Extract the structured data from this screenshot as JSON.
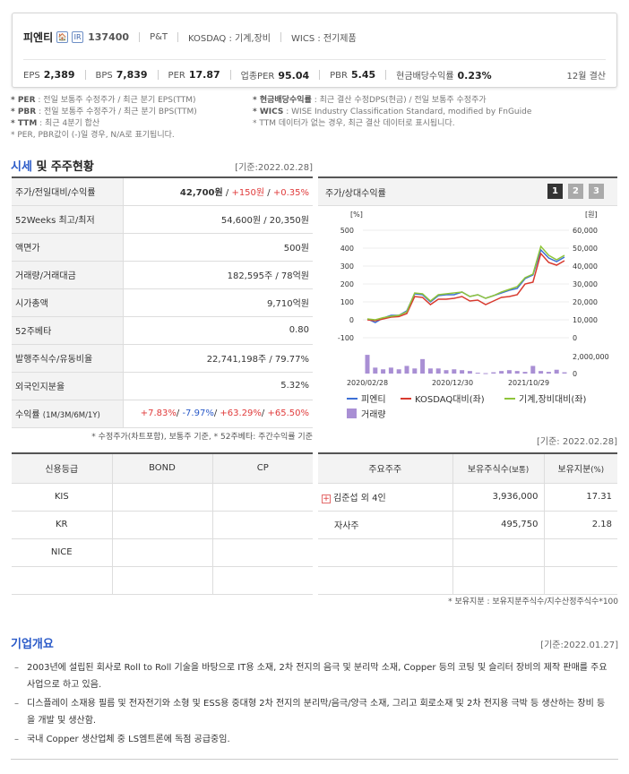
{
  "header": {
    "company": "피엔티",
    "icon1": "🏠",
    "icon2": "IR",
    "code": "137400",
    "tag": "P&T",
    "market": "KOSDAQ : 기계,장비",
    "wics": "WICS : 전기제품",
    "metrics": [
      {
        "label": "EPS",
        "value": "2,389"
      },
      {
        "label": "BPS",
        "value": "7,839"
      },
      {
        "label": "PER",
        "value": "17.87"
      },
      {
        "label": "업종PER",
        "value": "95.04"
      },
      {
        "label": "PBR",
        "value": "5.45"
      },
      {
        "label": "현금배당수익률",
        "value": "0.23%"
      }
    ],
    "settlement": "12월 결산"
  },
  "notes_left": [
    {
      "key": "* PER",
      "text": ": 전일 보통주 수정주가 / 최근 분기 EPS(TTM)"
    },
    {
      "key": "* PBR",
      "text": ": 전일 보통주 수정주가 / 최근 분기 BPS(TTM)"
    },
    {
      "key": "* TTM",
      "text": ": 최근 4분기 합산"
    },
    {
      "key": "",
      "text": "* PER, PBR값이 (-)일 경우, N/A로 표기됩니다."
    }
  ],
  "notes_right": [
    {
      "key": "* 현금배당수익률",
      "text": ": 최근 결산 수정DPS(현금) / 전일 보통주 수정주가"
    },
    {
      "key": "* WICS",
      "text": ": WISE Industry Classification Standard, modified by FnGuide"
    },
    {
      "key": "",
      "text": "* TTM 데이터가 없는 경우, 최근 결산 데이터로 표시됩니다."
    }
  ],
  "price_section": {
    "title_accent": "시세",
    "title_rest": " 및 주주현황",
    "base_date": "[기준:2022.02.28]",
    "rows": [
      {
        "label": "주가/전일대비/수익률",
        "value": "42,700원",
        "change": "+150원",
        "rate": "+0.35%"
      },
      {
        "label": "52Weeks 최고/최저",
        "value": "54,600원 / 20,350원"
      },
      {
        "label": "액면가",
        "value": "500원"
      },
      {
        "label": "거래량/거래대금",
        "value": "182,595주 / 78억원"
      },
      {
        "label": "시가총액",
        "value": "9,710억원"
      },
      {
        "label": "52주베타",
        "value": "0.80"
      },
      {
        "label": "발행주식수/유동비율",
        "value": "22,741,198주 / 79.77%"
      },
      {
        "label": "외국인지분율",
        "value": "5.32%"
      }
    ],
    "returns": {
      "label": "수익률",
      "label_small": "(1M/3M/6M/1Y)",
      "r1m": "+7.83%",
      "r3m": "-7.97%",
      "r6m": "+63.29%",
      "r1y": "+65.50%"
    },
    "note": "* 수정주가(차트포함), 보통주 기준, * 52주베타: 주간수익률 기준"
  },
  "chart": {
    "title": "주가/상대수익률",
    "pages": [
      "1",
      "2",
      "3"
    ],
    "chart_data": {
      "type": "line",
      "y_left_unit": "[%]",
      "y_right_unit": "[원]",
      "y_left_ticks": [
        "500",
        "400",
        "300",
        "200",
        "100",
        "0",
        "-100"
      ],
      "y_right_ticks": [
        "60,000",
        "50,000",
        "40,000",
        "30,000",
        "20,000",
        "10,000",
        "0"
      ],
      "volume_ticks": [
        "2,000,000",
        "0"
      ],
      "x_ticks": [
        "2020/02/28",
        "2020/12/30",
        "2021/10/29"
      ],
      "ylim_left": [
        -100,
        500
      ],
      "series": [
        {
          "name": "피엔티",
          "color": "#3c6fd6",
          "values": [
            5,
            -15,
            10,
            25,
            25,
            50,
            145,
            140,
            100,
            135,
            140,
            140,
            155,
            130,
            140,
            120,
            135,
            150,
            165,
            175,
            230,
            250,
            390,
            345,
            325,
            350
          ]
        },
        {
          "name": "KOSDAQ대비(좌)",
          "color": "#d83a2f",
          "values": [
            0,
            -5,
            5,
            15,
            18,
            35,
            130,
            125,
            85,
            115,
            115,
            120,
            130,
            105,
            110,
            85,
            105,
            125,
            130,
            140,
            200,
            210,
            370,
            320,
            305,
            330
          ]
        },
        {
          "name": "기계,장비대비(좌)",
          "color": "#8fc53a",
          "values": [
            5,
            0,
            12,
            20,
            25,
            45,
            150,
            145,
            105,
            140,
            145,
            150,
            155,
            130,
            140,
            120,
            135,
            155,
            170,
            185,
            235,
            255,
            410,
            360,
            335,
            360
          ]
        }
      ],
      "volume": {
        "name": "거래량",
        "color": "#a98fd4",
        "values": [
          2200000,
          700000,
          500000,
          700000,
          500000,
          900000,
          600000,
          1700000,
          600000,
          600000,
          400000,
          500000,
          400000,
          300000,
          100000,
          50000,
          150000,
          300000,
          400000,
          300000,
          200000,
          900000,
          300000,
          200000,
          450000,
          150000
        ]
      }
    }
  },
  "credit": {
    "headers": [
      "신용등급",
      "BOND",
      "CP"
    ],
    "rows": [
      {
        "agency": "KIS",
        "bond": "",
        "cp": ""
      },
      {
        "agency": "KR",
        "bond": "",
        "cp": ""
      },
      {
        "agency": "NICE",
        "bond": "",
        "cp": ""
      },
      {
        "agency": "",
        "bond": "",
        "cp": ""
      }
    ]
  },
  "shareholders": {
    "date": "[기준: 2022.02.28]",
    "headers": [
      "주요주주",
      "보유주식수",
      "(보통)",
      "보유지분",
      "(%)"
    ],
    "rows": [
      {
        "name": "김준섭 외 4인",
        "shares": "3,936,000",
        "pct": "17.31",
        "expand": "+"
      },
      {
        "name": "자사주",
        "shares": "495,750",
        "pct": "2.18",
        "expand": ""
      },
      {
        "name": "",
        "shares": "",
        "pct": "",
        "expand": ""
      },
      {
        "name": "",
        "shares": "",
        "pct": "",
        "expand": ""
      }
    ],
    "note": "* 보유지분 : 보유지분주식수/지수산정주식수*100"
  },
  "overview": {
    "title": "기업개요",
    "date": "[기준:2022.01.27]",
    "items": [
      "2003년에 설립된 회사로 Roll to Roll 기술을 바탕으로 IT용 소재, 2차 전지의 음극 및 분리막 소재, Copper 등의 코팅 및 슬리터 장비의 제작 판매를 주요 사업으로 하고 있음.",
      "디스플레이 소재용 필름 및 전자전기와 소형 및 ESS용 중대형 2차 전지의 분리막/음극/양극 소재, 그리고 회로소재 및 2차 전지용 극박 등 생산하는 장비 등을 개발 및 생산함.",
      "국내 Copper 생산업체 중 LS엠트론에 독점 공급중임."
    ]
  }
}
